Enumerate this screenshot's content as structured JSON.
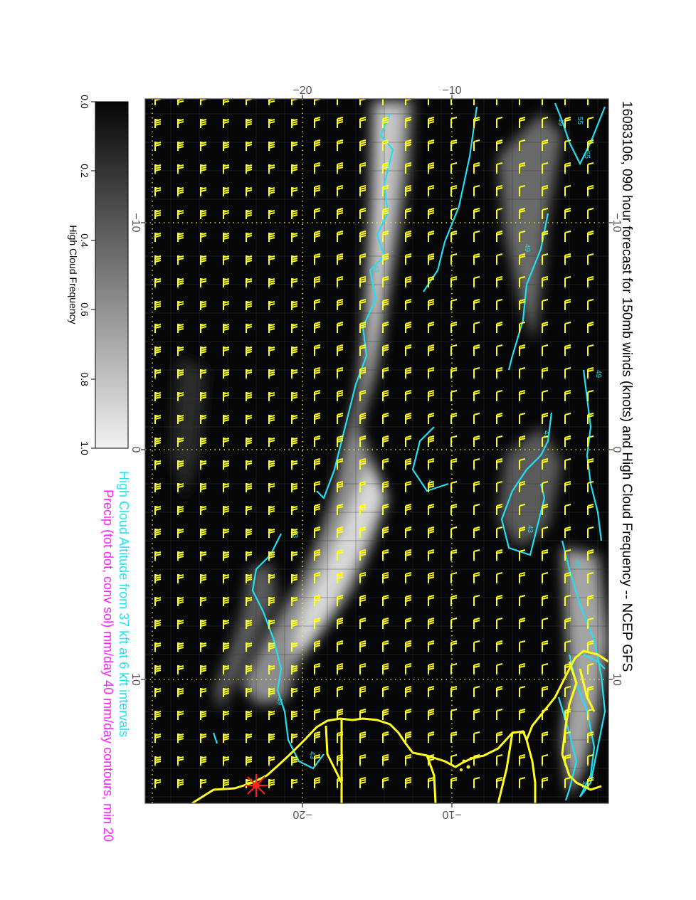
{
  "title": "16083106, 090 hour forecast for 150mb winds (knots) and High Cloud Frequency -- NCEP GFS",
  "legend": {
    "cyan_line": "High Cloud Altitude from 37 kft at 6 kft intervals",
    "magenta_line": "Precip (tot dot, conv sol) mm/day 40 mm/day contours, min 20"
  },
  "colorbar": {
    "title": "High Cloud Frequency",
    "ticks": [
      "0.0",
      "0.2",
      "0.4",
      "0.6",
      "0.8",
      "1.0"
    ]
  },
  "axes": {
    "top_ticks": [
      "−20",
      "−10"
    ],
    "bottom_ticks": [
      "−20",
      "−10"
    ],
    "left_ticks": [
      "−10",
      "0",
      "10"
    ],
    "right_ticks": [
      "−10",
      "0",
      "10"
    ]
  },
  "contour_labels": [
    "55",
    "49",
    "55",
    "43",
    "49",
    "49",
    "43",
    "43",
    "43",
    "43",
    "49",
    "49",
    "43",
    "49"
  ],
  "colors": {
    "barb": "#ffff22",
    "coast": "#ffff22",
    "contour": "#22e0f0",
    "precip": "#ff22ff",
    "marker": "#ff2020",
    "background": "#060606",
    "grid": "#ffff44"
  }
}
